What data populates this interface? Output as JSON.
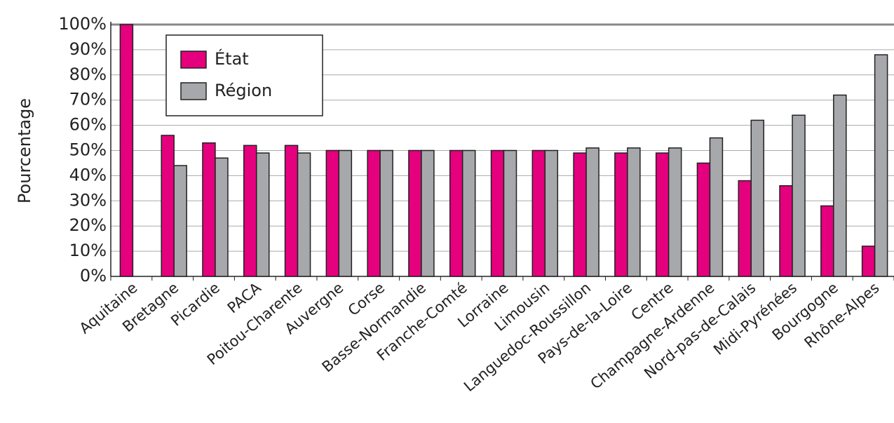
{
  "chart_data": {
    "type": "bar",
    "y_label": "Pourcentage",
    "categories": [
      "Aquitaine",
      "Bretagne",
      "Picardie",
      "PACA",
      "Poitou-Charente",
      "Auvergne",
      "Corse",
      "Basse-Normandie",
      "Franche-Comté",
      "Lorraine",
      "Limousin",
      "Languedoc-Roussillon",
      "Pays-de-la-Loire",
      "Centre",
      "Champagne-Ardenne",
      "Nord-pas-de-Calais",
      "Midi-Pyrénées",
      "Bourgogne",
      "Rhône-Alpes"
    ],
    "series": [
      {
        "name": "État",
        "color": "#e5007e",
        "values": [
          100,
          56,
          53,
          52,
          52,
          50,
          50,
          50,
          50,
          50,
          50,
          49,
          49,
          49,
          45,
          38,
          36,
          28,
          12
        ]
      },
      {
        "name": "Région",
        "color": "#a7a8ab",
        "values": [
          0,
          44,
          47,
          49,
          49,
          50,
          50,
          50,
          50,
          50,
          50,
          51,
          51,
          51,
          55,
          62,
          64,
          72,
          88
        ]
      }
    ],
    "ylim": [
      0,
      100
    ],
    "yticks": [
      {
        "value": 0,
        "label": "0%"
      },
      {
        "value": 10,
        "label": "10%"
      },
      {
        "value": 20,
        "label": "20%"
      },
      {
        "value": 30,
        "label": "30%"
      },
      {
        "value": 40,
        "label": "40%"
      },
      {
        "value": 50,
        "label": "50%"
      },
      {
        "value": 60,
        "label": "60%"
      },
      {
        "value": 70,
        "label": "70%"
      },
      {
        "value": 80,
        "label": "80%"
      },
      {
        "value": 90,
        "label": "90%"
      },
      {
        "value": 100,
        "label": "100%"
      }
    ],
    "grid": true
  }
}
